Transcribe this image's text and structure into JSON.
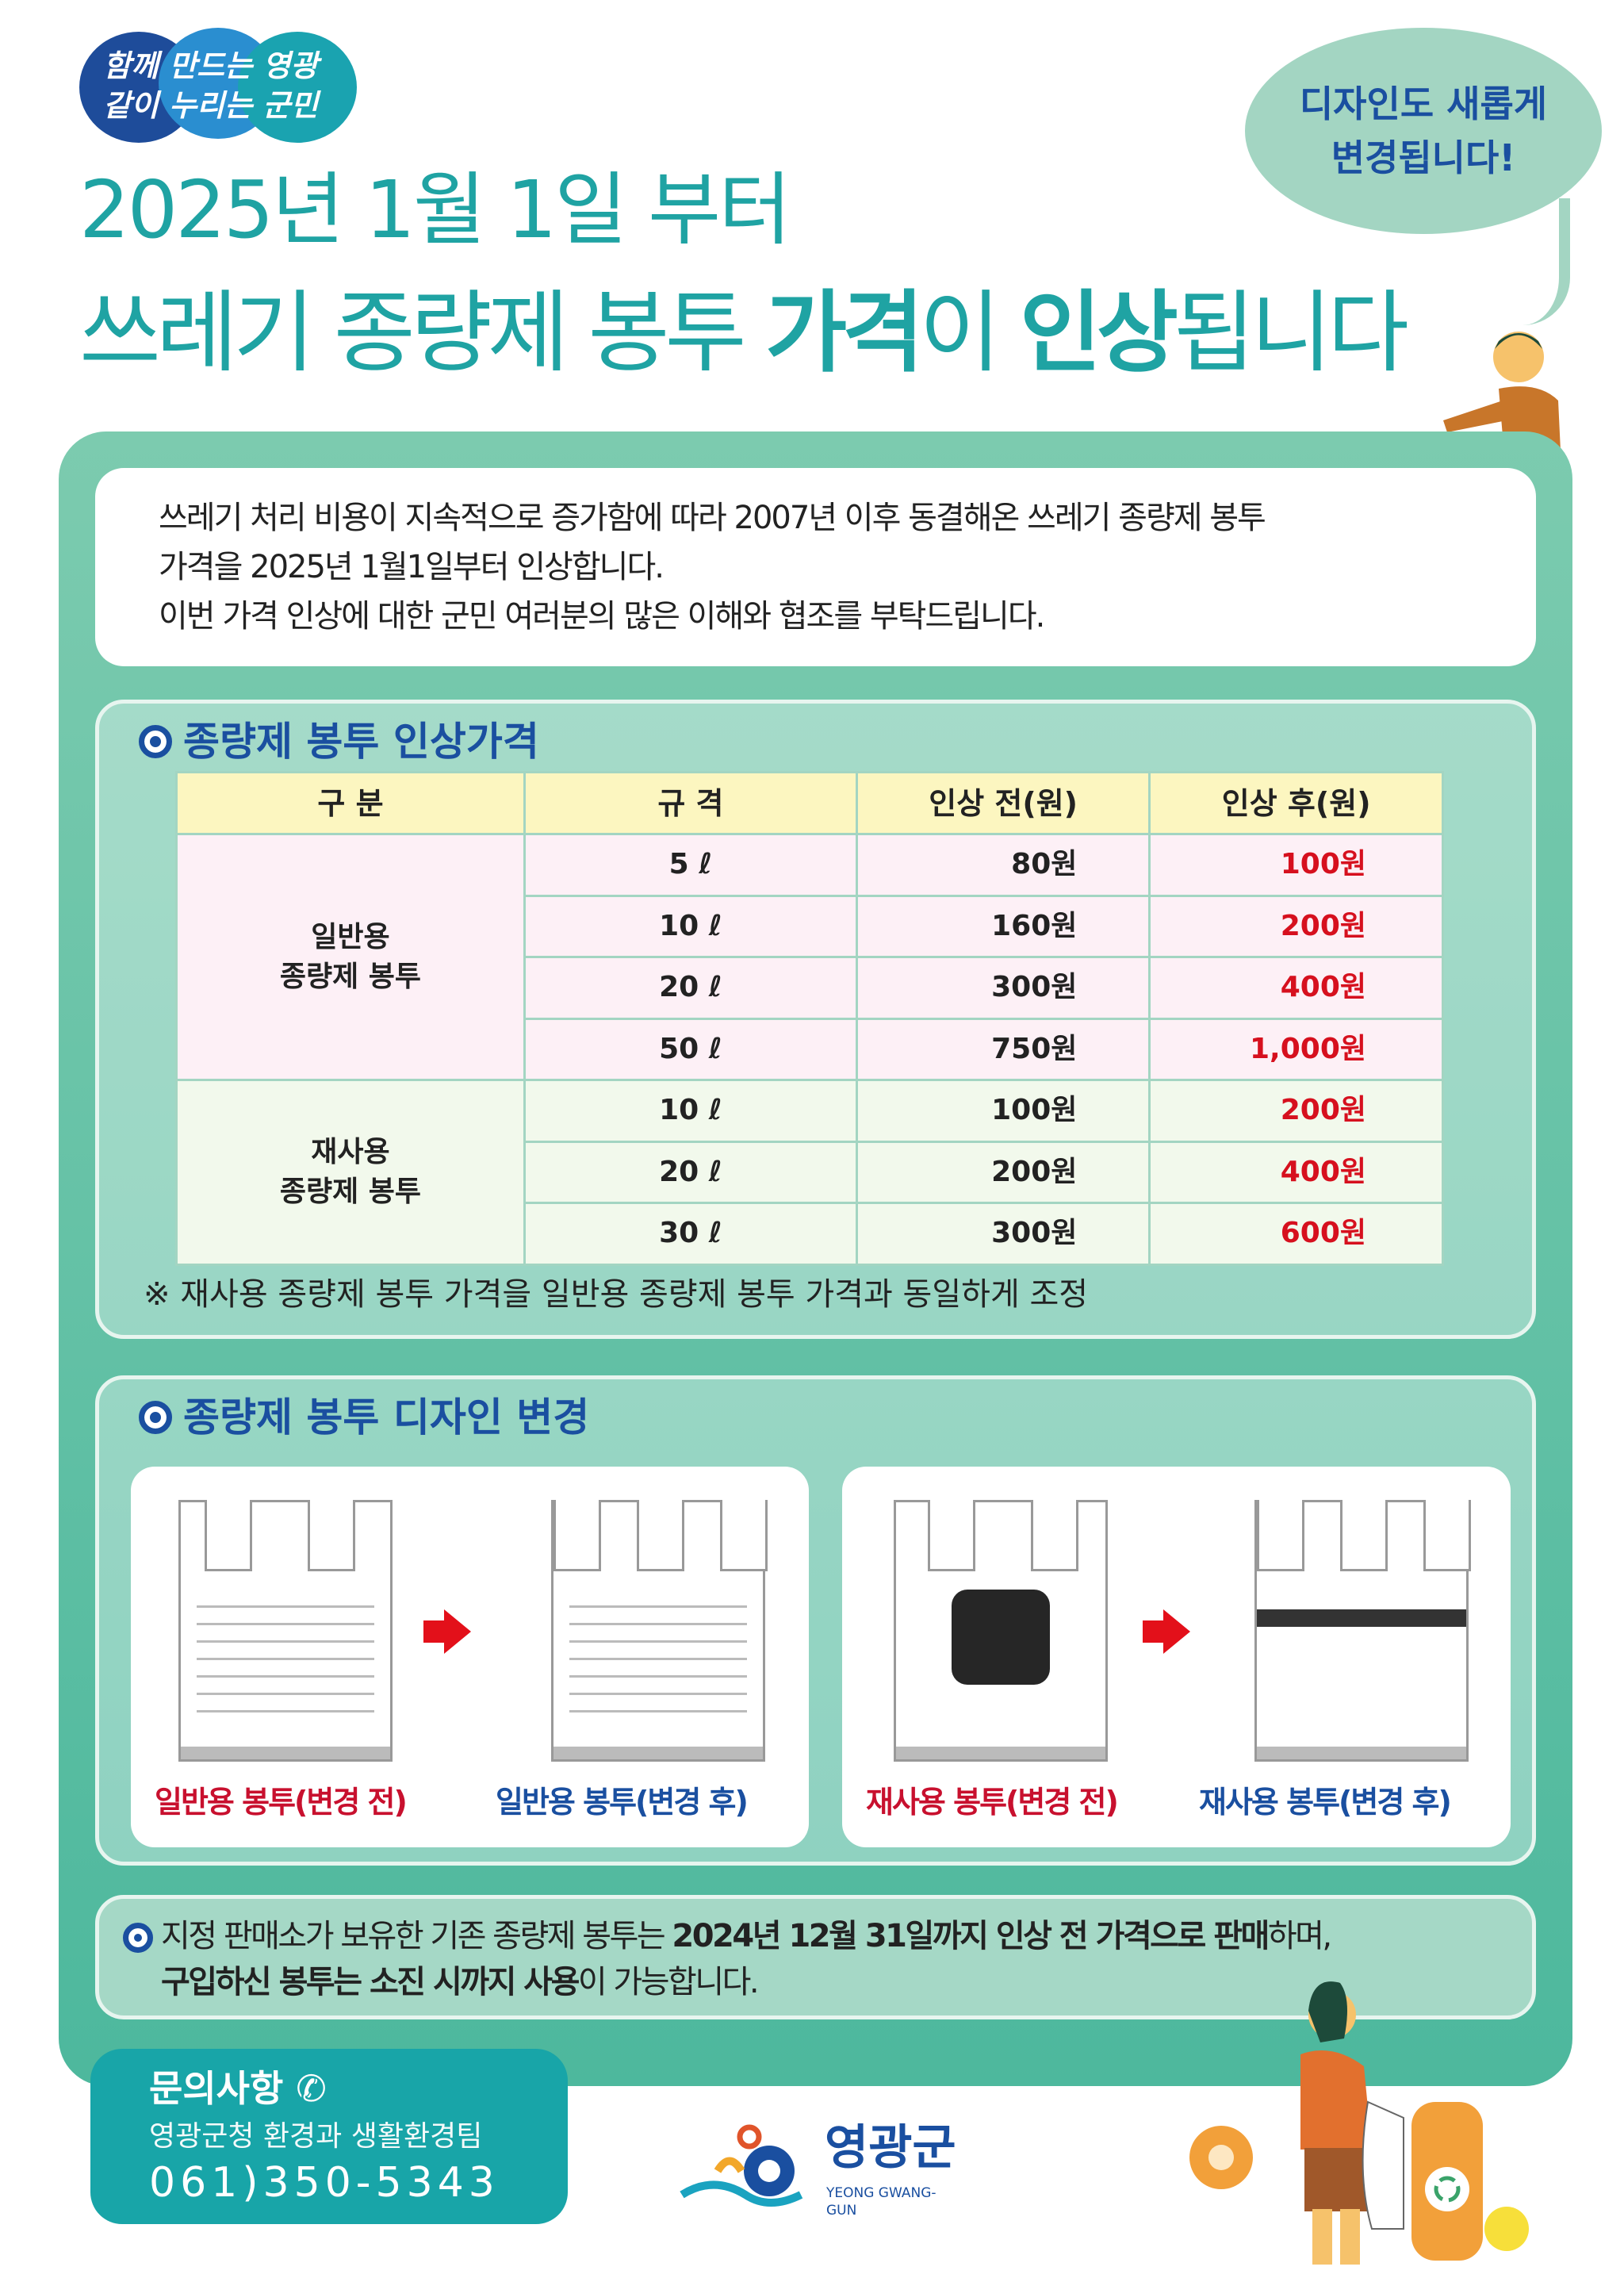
{
  "slogan": {
    "text": "함께 만드는 영광\n같이 누리는 군민"
  },
  "bubble": {
    "line1": "디자인도 새롭게",
    "line2": "변경됩니다!"
  },
  "title": {
    "line1": "2025년 1월 1일 부터",
    "line2_a": "쓰레기 종량제 봉투 ",
    "line2_b": "가격",
    "line2_c": "이 ",
    "line2_d": "인상",
    "line2_e": "됩니다"
  },
  "intro": {
    "line1": "쓰레기 처리 비용이 지속적으로 증가함에 따라 2007년 이후 동결해온 쓰레기 종량제 봉투",
    "line2": "가격을 2025년 1월1일부터 인상합니다.",
    "line3": "이번 가격 인상에 대한 군민 여러분의 많은 이해와 협조를 부탁드립니다."
  },
  "price": {
    "title": "종량제 봉투 인상가격",
    "headers": [
      "구 분",
      "규 격",
      "인상 전(원)",
      "인상 후(원)"
    ],
    "groups": [
      {
        "label_1": "일반용",
        "label_2": "종량제 봉투",
        "rows": [
          {
            "size": "5 ℓ",
            "before": "80원",
            "after": "100원"
          },
          {
            "size": "10 ℓ",
            "before": "160원",
            "after": "200원"
          },
          {
            "size": "20 ℓ",
            "before": "300원",
            "after": "400원"
          },
          {
            "size": "50 ℓ",
            "before": "750원",
            "after": "1,000원"
          }
        ]
      },
      {
        "label_1": "재사용",
        "label_2": "종량제 봉투",
        "rows": [
          {
            "size": "10 ℓ",
            "before": "100원",
            "after": "200원"
          },
          {
            "size": "20 ℓ",
            "before": "200원",
            "after": "400원"
          },
          {
            "size": "30 ℓ",
            "before": "300원",
            "after": "600원"
          }
        ]
      }
    ],
    "note": "※ 재사용 종량제 봉투 가격을 일반용 종량제 봉투 가격과 동일하게 조정"
  },
  "design": {
    "title": "종량제 봉투 디자인 변경",
    "captions": [
      "일반용 봉투(변경 전)",
      "일반용 봉투(변경 후)",
      "재사용 봉투(변경 전)",
      "재사용 봉투(변경 후)"
    ]
  },
  "sale": {
    "a": "지정 판매소가 보유한 기존 종량제 봉투는 ",
    "b": "2024년 12월 31일까지 인상 전 가격으로 판매",
    "c": "하며,",
    "d": "구입하신 봉투는 소진 시까지 사용",
    "e": "이 가능합니다."
  },
  "contact": {
    "heading": "문의사항",
    "dept": "영광군청 환경과 생활환경팀",
    "phone": "061)350-5343",
    "icon": "phone-icon"
  },
  "logo": {
    "name": "영광군",
    "en": "YEONG GWANG-GUN"
  },
  "colors": {
    "teal": "#1fa3a3",
    "navy": "#1a4fa0",
    "red": "#d6101e",
    "panel": "#4db89d"
  }
}
